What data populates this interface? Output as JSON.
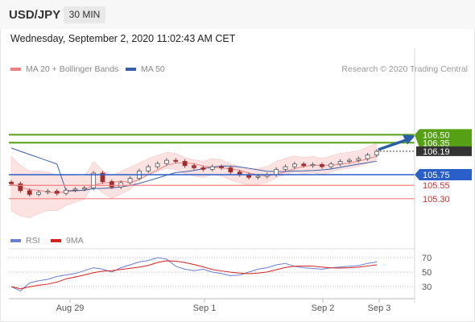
{
  "header": {
    "symbol": "USD/JPY",
    "timeframe": "30 MIN"
  },
  "timestamp": "Wednesday, September 2, 2020 11:02:43 AM CET",
  "legend": {
    "ma20": {
      "label": "MA 20 + Bollinger Bands",
      "color": "#f08080"
    },
    "ma50": {
      "label": "MA 50",
      "color": "#3a5fa8"
    }
  },
  "credit": "Research © 2020 Trading Central",
  "rsi_legend": {
    "rsi": {
      "label": "RSI",
      "color": "#6a7fd8"
    },
    "ma9": {
      "label": "9MA",
      "color": "#d42020"
    }
  },
  "colors": {
    "resistance": "#55a014",
    "pivot": "#2a5ec8",
    "support": "#f08080",
    "last_price_box": "#333333",
    "candle_up": "#555555",
    "candle_down": "#a03030",
    "bollinger_fill": "#fde2e2"
  },
  "chart_data": {
    "type": "candlestick",
    "instrument": "USD/JPY",
    "interval": "30 MIN",
    "price_axis_range": [
      105.1,
      106.7
    ],
    "x_axis_labels": [
      "Aug 29",
      "Sep 1",
      "Sep 2",
      "Sep 3"
    ],
    "close_series_approx": [
      105.58,
      105.45,
      105.38,
      105.42,
      105.44,
      105.4,
      105.46,
      105.48,
      105.5,
      105.78,
      105.62,
      105.52,
      105.6,
      105.68,
      105.82,
      105.9,
      105.96,
      106.02,
      106.0,
      105.92,
      105.88,
      105.85,
      105.9,
      105.88,
      105.8,
      105.75,
      105.7,
      105.72,
      105.75,
      105.85,
      105.9,
      105.95,
      105.92,
      105.94,
      105.9,
      105.95,
      106.0,
      106.02,
      106.05,
      106.12,
      106.19
    ],
    "last_price": 106.19,
    "levels": {
      "resistance": [
        106.5,
        106.35
      ],
      "pivot": 105.75,
      "support": [
        105.55,
        105.3
      ]
    },
    "forecast_arrow": {
      "from": 106.19,
      "to": 106.5,
      "direction": "up"
    },
    "indicators": [
      "MA 20 + Bollinger Bands",
      "MA 50"
    ],
    "rsi": {
      "levels": [
        70,
        50,
        30
      ],
      "values_approx": [
        30,
        24,
        35,
        38,
        40,
        44,
        46,
        48,
        52,
        56,
        54,
        50,
        56,
        60,
        64,
        66,
        70,
        68,
        58,
        54,
        52,
        54,
        50,
        48,
        45,
        46,
        50,
        54,
        56,
        60,
        62,
        58,
        56,
        55,
        54,
        56,
        57,
        58,
        59,
        62,
        64
      ]
    }
  }
}
